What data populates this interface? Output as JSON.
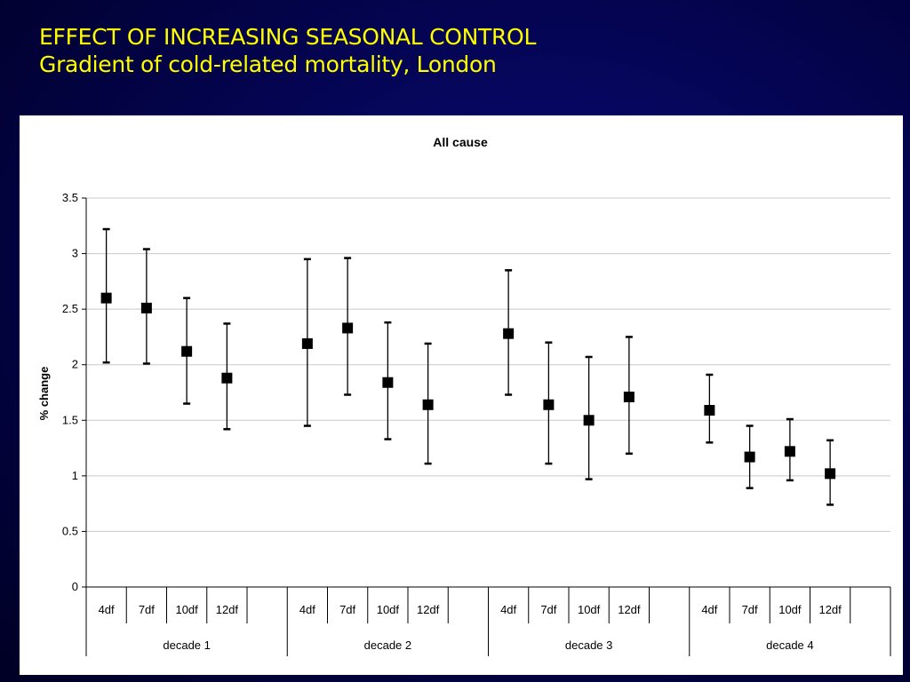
{
  "slide": {
    "title_line1": "EFFECT OF INCREASING  SEASONAL CONTROL",
    "title_line2": "Gradient of cold-related mortality, London"
  },
  "chart_data": {
    "type": "scatter",
    "title": "All cause",
    "ylabel": "% change",
    "xlabel": "",
    "ylim": [
      0,
      3.5
    ],
    "yticks": [
      0,
      0.5,
      1,
      1.5,
      2,
      2.5,
      3,
      3.5
    ],
    "grid": true,
    "groups": [
      "decade 1",
      "decade 2",
      "decade 3",
      "decade 4"
    ],
    "categories": [
      "4df",
      "7df",
      "10df",
      "12df"
    ],
    "points": [
      {
        "group": "decade 1",
        "category": "4df",
        "value": 2.6,
        "lower": 2.02,
        "upper": 3.22
      },
      {
        "group": "decade 1",
        "category": "7df",
        "value": 2.51,
        "lower": 2.01,
        "upper": 3.04
      },
      {
        "group": "decade 1",
        "category": "10df",
        "value": 2.12,
        "lower": 1.65,
        "upper": 2.6
      },
      {
        "group": "decade 1",
        "category": "12df",
        "value": 1.88,
        "lower": 1.42,
        "upper": 2.37
      },
      {
        "group": "decade 2",
        "category": "4df",
        "value": 2.19,
        "lower": 1.45,
        "upper": 2.95
      },
      {
        "group": "decade 2",
        "category": "7df",
        "value": 2.33,
        "lower": 1.73,
        "upper": 2.96
      },
      {
        "group": "decade 2",
        "category": "10df",
        "value": 1.84,
        "lower": 1.33,
        "upper": 2.38
      },
      {
        "group": "decade 2",
        "category": "12df",
        "value": 1.64,
        "lower": 1.11,
        "upper": 2.19
      },
      {
        "group": "decade 3",
        "category": "4df",
        "value": 2.28,
        "lower": 1.73,
        "upper": 2.85
      },
      {
        "group": "decade 3",
        "category": "7df",
        "value": 1.64,
        "lower": 1.11,
        "upper": 2.2
      },
      {
        "group": "decade 3",
        "category": "10df",
        "value": 1.5,
        "lower": 0.97,
        "upper": 2.07
      },
      {
        "group": "decade 3",
        "category": "12df",
        "value": 1.71,
        "lower": 1.2,
        "upper": 2.25
      },
      {
        "group": "decade 4",
        "category": "4df",
        "value": 1.59,
        "lower": 1.3,
        "upper": 1.91
      },
      {
        "group": "decade 4",
        "category": "7df",
        "value": 1.17,
        "lower": 0.89,
        "upper": 1.45
      },
      {
        "group": "decade 4",
        "category": "10df",
        "value": 1.22,
        "lower": 0.96,
        "upper": 1.51
      },
      {
        "group": "decade 4",
        "category": "12df",
        "value": 1.02,
        "lower": 0.74,
        "upper": 1.32
      }
    ]
  }
}
